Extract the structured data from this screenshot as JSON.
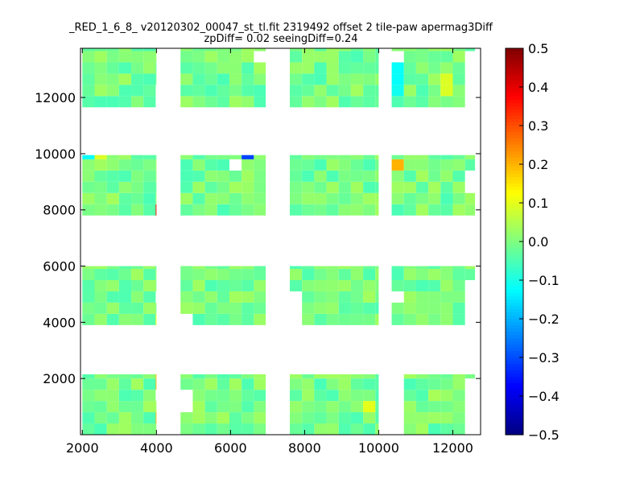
{
  "chart_data": {
    "type": "heatmap",
    "title": "_RED_1_6_8_ v20120302_00047_st_tl.fit 2319492 offset 2 tile-paw apermag3Diff",
    "subtitle": "zpDiff= 0.02 seeingDiff=0.24",
    "xlabel": "",
    "ylabel": "",
    "xlim": [
      1950,
      12750
    ],
    "ylim": [
      0,
      13750
    ],
    "x_ticks": [
      2000,
      4000,
      6000,
      8000,
      10000,
      12000
    ],
    "x_tick_labels": [
      "2000",
      "4000",
      "6000",
      "8000",
      "10000",
      "12000"
    ],
    "y_ticks": [
      2000,
      4000,
      6000,
      8000,
      10000,
      12000
    ],
    "y_tick_labels": [
      "2000",
      "4000",
      "6000",
      "8000",
      "10000",
      "12000"
    ],
    "cell_size": [
      330,
      400
    ],
    "colormap": "jet",
    "clim": [
      -0.5,
      0.5
    ],
    "colorbar_ticks": [
      0.5,
      0.4,
      0.3,
      0.2,
      0.1,
      0.0,
      -0.1,
      -0.2,
      -0.3,
      -0.4,
      -0.5
    ],
    "colorbar_tick_labels": [
      "0.5",
      "0.4",
      "0.3",
      "0.2",
      "0.1",
      "0.0",
      "−0.1",
      "−0.2",
      "−0.3",
      "−0.4",
      "−0.5"
    ],
    "tile_columns": [
      {
        "x_start": 2000,
        "x_end": 4000
      },
      {
        "x_start": 4650,
        "x_end": 6950
      },
      {
        "x_start": 7600,
        "x_end": 10000
      },
      {
        "x_start": 10350,
        "x_end": 12600
      }
    ],
    "tile_rows": [
      {
        "y_start": 0,
        "y_end": 2150
      },
      {
        "y_start": 3900,
        "y_end": 6000
      },
      {
        "y_start": 7800,
        "y_end": 9950
      },
      {
        "y_start": 11650,
        "y_end": 13750
      }
    ],
    "base_value": -0.01,
    "notable_cells": [
      {
        "x": 4200,
        "y": 8000,
        "value": 0.38
      },
      {
        "x": 6450,
        "y": 10100,
        "value": -0.31
      },
      {
        "x": 2200,
        "y": 10100,
        "value": -0.12
      },
      {
        "x": 2500,
        "y": 10100,
        "value": 0.09
      },
      {
        "x": 3150,
        "y": 10100,
        "value": 0.03
      },
      {
        "x": 10550,
        "y": 9700,
        "value": 0.2
      },
      {
        "x": 10500,
        "y": 12900,
        "value": -0.12
      },
      {
        "x": 10500,
        "y": 12500,
        "value": -0.12
      },
      {
        "x": 10500,
        "y": 12100,
        "value": -0.11
      },
      {
        "x": 11850,
        "y": 12450,
        "value": 0.09
      },
      {
        "x": 4200,
        "y": 4100,
        "value": 0.11
      },
      {
        "x": 4200,
        "y": 2000,
        "value": 0.2
      },
      {
        "x": 4200,
        "y": 650,
        "value": 0.2
      },
      {
        "x": 4850,
        "y": 1550,
        "value": -0.13
      },
      {
        "x": 9850,
        "y": 1050,
        "value": 0.1
      },
      {
        "x": 11550,
        "y": 1500,
        "value": 0.04
      },
      {
        "x": 6850,
        "y": 2000,
        "value": 0.03
      }
    ],
    "empty_cells": [
      {
        "x": 4200,
        "y": 12250
      },
      {
        "x": 4200,
        "y": 11850
      },
      {
        "x": 6150,
        "y": 9500
      },
      {
        "x": 4200,
        "y": 4950
      },
      {
        "x": 4200,
        "y": 1250
      },
      {
        "x": 10500,
        "y": 13450
      },
      {
        "x": 10500,
        "y": 4950
      },
      {
        "x": 10500,
        "y": 2000
      },
      {
        "x": 10500,
        "y": 1600
      },
      {
        "x": 10500,
        "y": 1200
      },
      {
        "x": 10500,
        "y": 800
      },
      {
        "x": 10500,
        "y": 400
      },
      {
        "x": 12450,
        "y": 5450
      },
      {
        "x": 12450,
        "y": 5050
      },
      {
        "x": 12450,
        "y": 4650
      },
      {
        "x": 12450,
        "y": 4250
      },
      {
        "x": 12450,
        "y": 8850
      },
      {
        "x": 12450,
        "y": 9250
      },
      {
        "x": 12450,
        "y": 13450
      },
      {
        "x": 12450,
        "y": 13050
      },
      {
        "x": 12450,
        "y": 12650
      },
      {
        "x": 12450,
        "y": 12250
      },
      {
        "x": 12450,
        "y": 11850
      },
      {
        "x": 12450,
        "y": 1600
      },
      {
        "x": 12450,
        "y": 1200
      },
      {
        "x": 12450,
        "y": 800
      },
      {
        "x": 12450,
        "y": 400
      },
      {
        "x": 7750,
        "y": 5050
      },
      {
        "x": 7750,
        "y": 4650
      },
      {
        "x": 7750,
        "y": 4250
      },
      {
        "x": 6850,
        "y": 13450
      },
      {
        "x": 4850,
        "y": 4250
      },
      {
        "x": 4850,
        "y": 1200
      }
    ]
  }
}
